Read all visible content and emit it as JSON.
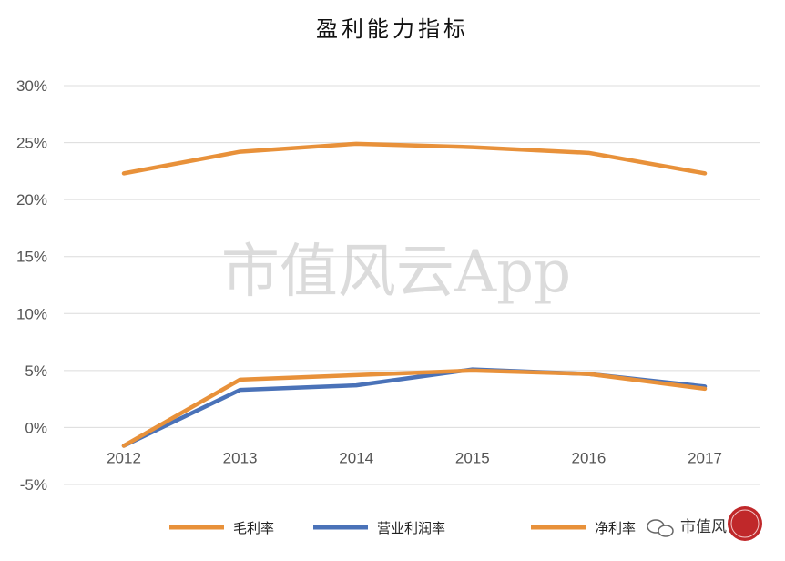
{
  "chart_data": {
    "type": "line",
    "title": "盈利能力指标",
    "categories": [
      "2012",
      "2013",
      "2014",
      "2015",
      "2016",
      "2017"
    ],
    "ylim": [
      -5,
      30
    ],
    "yticks": [
      "-5%",
      "0%",
      "5%",
      "10%",
      "15%",
      "20%",
      "25%",
      "30%"
    ],
    "grid": true,
    "legend_position": "bottom",
    "series": [
      {
        "name": "毛利率",
        "color": "#e8913a",
        "values": [
          22.3,
          24.2,
          24.9,
          24.6,
          24.1,
          22.3
        ]
      },
      {
        "name": "营业利润率",
        "color": "#4a72b8",
        "values": [
          -1.6,
          3.3,
          3.7,
          5.1,
          4.7,
          3.6
        ]
      },
      {
        "name": "净利率",
        "color": "#e8913a",
        "values": [
          -1.6,
          4.2,
          4.6,
          5.0,
          4.7,
          3.4
        ]
      }
    ]
  },
  "watermark": "市值风云App",
  "brand": {
    "text": "市值风云",
    "icon": "wechat-icon"
  }
}
